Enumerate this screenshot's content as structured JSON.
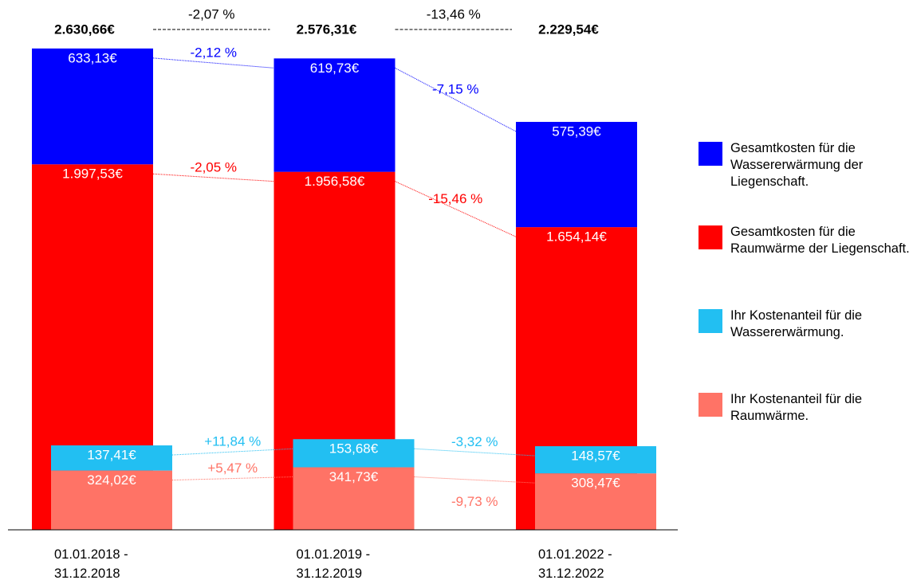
{
  "chart_data": {
    "type": "bar",
    "categories": [
      "01.01.2018 - 31.12.2018",
      "01.01.2019 - 31.12.2019",
      "01.01.2022 - 31.12.2022"
    ],
    "totals": [
      2630.66,
      2576.31,
      2229.54
    ],
    "totals_labels": [
      "2.630,66€",
      "2.576,31€",
      "2.229,54€"
    ],
    "total_changes": [
      -2.07,
      -13.46
    ],
    "total_change_labels": [
      "-2,07 %",
      "-13,46 %"
    ],
    "ylim": [
      0,
      2900
    ],
    "series": [
      {
        "name": "Gesamtkosten für die Wassererwärmung der Liegenschaft.",
        "color": "#0000ff",
        "stack": "outer",
        "values": [
          633.13,
          619.73,
          575.39
        ],
        "value_labels": [
          "633,13€",
          "619,73€",
          "575,39€"
        ],
        "changes": [
          -2.12,
          -7.15
        ],
        "change_labels": [
          "-2,12 %",
          "-7,15 %"
        ]
      },
      {
        "name": "Gesamtkosten für die Raumwärme der Liegenschaft.",
        "color": "#ff0000",
        "stack": "outer",
        "values": [
          1997.53,
          1956.58,
          1654.14
        ],
        "value_labels": [
          "1.997,53€",
          "1.956,58€",
          "1.654,14€"
        ],
        "changes": [
          -2.05,
          -15.46
        ],
        "change_labels": [
          "-2,05 %",
          "-15,46 %"
        ]
      },
      {
        "name": "Ihr Kostenanteil für die Wassererwärmung.",
        "color": "#22bff2",
        "stack": "inner",
        "values": [
          137.41,
          153.68,
          148.57
        ],
        "value_labels": [
          "137,41€",
          "153,68€",
          "148,57€"
        ],
        "changes": [
          11.84,
          -3.32
        ],
        "change_labels": [
          "+11,84 %",
          "-3,32 %"
        ]
      },
      {
        "name": "Ihr Kostenanteil für die Raumwärme.",
        "color": "#ff7366",
        "stack": "inner",
        "values": [
          324.02,
          341.73,
          308.47
        ],
        "value_labels": [
          "324,02€",
          "341,73€",
          "308,47€"
        ],
        "changes": [
          5.47,
          -9.73
        ],
        "change_labels": [
          "+5,47 %",
          "-9,73 %"
        ]
      }
    ]
  }
}
